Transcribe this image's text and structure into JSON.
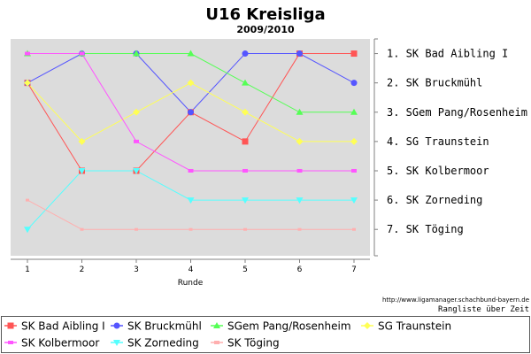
{
  "title": "U16 Kreisliga",
  "subtitle": "2009/2010",
  "source_url": "http://www.ligamanager.schachbund-bayern.de",
  "caption": "Rangliste über Zeit",
  "chart_data": {
    "type": "line",
    "title": "U16 Kreisliga",
    "subtitle": "2009/2010",
    "xlabel": "Runde",
    "ylabel": "",
    "x": [
      1,
      2,
      3,
      4,
      5,
      6,
      7
    ],
    "ylim": [
      7.9,
      0.5
    ],
    "y_inverted": true,
    "grid": false,
    "legend_position": "bottom",
    "right_labels": [
      "1.  SK Bad Aibling I",
      "2.  SK Bruckmühl",
      "3.  SGem Pang/Rosenheim",
      "4.  SG Traunstein",
      "5.  SK Kolbermoor",
      "6.  SK Zorneding",
      "7.  SK Töging"
    ],
    "series": [
      {
        "name": "SK Bad Aibling I",
        "color": "#ff5555",
        "marker": "square",
        "values": [
          2,
          5,
          5,
          3,
          4,
          1,
          1
        ]
      },
      {
        "name": "SK Bruckmühl",
        "color": "#5555ff",
        "marker": "circle",
        "values": [
          2,
          1,
          1,
          3,
          1,
          1,
          2
        ]
      },
      {
        "name": "SGem Pang/Rosenheim",
        "color": "#55ff55",
        "marker": "triangle-up",
        "values": [
          1,
          1,
          1,
          1,
          2,
          3,
          3
        ]
      },
      {
        "name": "SG Traunstein",
        "color": "#ffff55",
        "marker": "diamond",
        "values": [
          2,
          4,
          3,
          2,
          3,
          4,
          4
        ]
      },
      {
        "name": "SK Kolbermoor",
        "color": "#ff55ff",
        "marker": "square-small",
        "values": [
          1,
          1,
          4,
          5,
          5,
          5,
          5
        ]
      },
      {
        "name": "SK Zorneding",
        "color": "#55ffff",
        "marker": "triangle-down",
        "values": [
          7,
          5,
          5,
          6,
          6,
          6,
          6
        ]
      },
      {
        "name": "SK Töging",
        "color": "#ffafaf",
        "marker": "tiny",
        "values": [
          6,
          7,
          7,
          7,
          7,
          7,
          7
        ]
      }
    ]
  }
}
